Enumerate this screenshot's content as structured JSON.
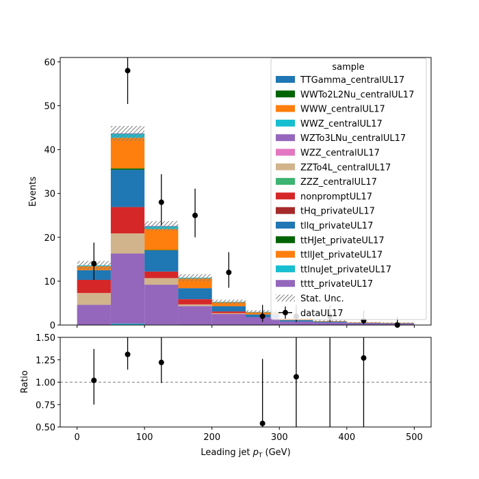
{
  "chart_data": {
    "type": "bar",
    "subtype": "stacked-histogram-with-ratio",
    "x_bin_edges": [
      0,
      50,
      100,
      150,
      200,
      250,
      300,
      350,
      400,
      450,
      500
    ],
    "xlabel_prefix": "Leading jet ",
    "xlabel_symbol": "p",
    "xlabel_subscript": "T",
    "xlabel_unit": " (GeV)",
    "xlim": [
      -25,
      525
    ],
    "xticks": [
      0,
      100,
      200,
      300,
      400,
      500
    ],
    "top": {
      "ylabel": "Events",
      "ylim": [
        0,
        61
      ],
      "yticks": [
        0,
        10,
        20,
        30,
        40,
        50,
        60
      ],
      "series": [
        {
          "name": "TTGamma_centralUL17",
          "color": "#1f77b4",
          "values": [
            0,
            0,
            0,
            0,
            0,
            0,
            0,
            0,
            0,
            0
          ]
        },
        {
          "name": "WWTo2L2Nu_centralUL17",
          "color": "#006400",
          "values": [
            0,
            0,
            0,
            0,
            0,
            0,
            0,
            0,
            0,
            0
          ]
        },
        {
          "name": "WWW_centralUL17",
          "color": "#ff7f0e",
          "values": [
            0,
            0,
            0,
            0,
            0,
            0,
            0,
            0,
            0,
            0
          ]
        },
        {
          "name": "WWZ_centralUL17",
          "color": "#17becf",
          "values": [
            0,
            0.3,
            0.1,
            0,
            0,
            0,
            0,
            0,
            0,
            0
          ]
        },
        {
          "name": "WZTo3LNu_centralUL17",
          "color": "#9467bd",
          "values": [
            4.6,
            16.0,
            9.1,
            4.3,
            2.5,
            1.8,
            0.8,
            0.6,
            0.4,
            0.3
          ]
        },
        {
          "name": "WZZ_centralUL17",
          "color": "#e377c2",
          "values": [
            0,
            0,
            0,
            0,
            0,
            0,
            0,
            0,
            0,
            0
          ]
        },
        {
          "name": "ZZTo4L_centralUL17",
          "color": "#d2b48c",
          "values": [
            2.7,
            4.6,
            1.5,
            0.4,
            0.2,
            0,
            0,
            0,
            0,
            0
          ]
        },
        {
          "name": "ZZZ_centralUL17",
          "color": "#3cb371",
          "values": [
            0,
            0,
            0,
            0,
            0,
            0,
            0,
            0,
            0,
            0
          ]
        },
        {
          "name": "nonpromptUL17",
          "color": "#d62728",
          "values": [
            3.0,
            6.0,
            1.5,
            1.2,
            0.4,
            0,
            0,
            0,
            0,
            0
          ]
        },
        {
          "name": "tHq_privateUL17",
          "color": "#a52a2a",
          "values": [
            0,
            0,
            0,
            0,
            0,
            0,
            0,
            0,
            0,
            0
          ]
        },
        {
          "name": "tllq_privateUL17",
          "color": "#1f77b4",
          "values": [
            2.2,
            8.5,
            4.8,
            2.5,
            1.2,
            0.6,
            0.3,
            0.2,
            0.1,
            0.1
          ]
        },
        {
          "name": "ttHJet_privateUL17",
          "color": "#006400",
          "values": [
            0,
            0.3,
            0.1,
            0,
            0,
            0,
            0,
            0,
            0,
            0
          ]
        },
        {
          "name": "ttllJet_privateUL17",
          "color": "#ff7f0e",
          "values": [
            0.9,
            7.0,
            4.8,
            2.2,
            0.9,
            0.5,
            0.3,
            0.1,
            0.1,
            0.1
          ]
        },
        {
          "name": "ttlnuJet_privateUL17",
          "color": "#17becf",
          "values": [
            0.2,
            0.9,
            0.6,
            0.2,
            0.1,
            0.1,
            0,
            0,
            0,
            0
          ]
        },
        {
          "name": "tttt_privateUL17",
          "color": "#9467bd",
          "values": [
            0,
            0.1,
            0.1,
            0,
            0,
            0,
            0,
            0,
            0,
            0
          ]
        }
      ],
      "stat_unc_label": "Stat. Unc.",
      "stat_unc": [
        1.0,
        1.7,
        1.1,
        0.8,
        0.5,
        0.4,
        0.2,
        0.2,
        0.1,
        0.1
      ],
      "data": {
        "name": "dataUL17",
        "values": [
          14,
          58,
          28,
          25,
          12,
          2,
          2,
          2,
          1,
          0
        ],
        "err_low": [
          3.7,
          7.6,
          5.3,
          5.0,
          3.5,
          1.3,
          1.3,
          1.3,
          0.8,
          0
        ],
        "err_high": [
          4.8,
          8.7,
          6.4,
          6.1,
          4.6,
          2.6,
          2.6,
          2.6,
          2.3,
          1.8
        ]
      },
      "legend_title": "sample",
      "legend_placement": "top-right"
    },
    "ratio": {
      "ylabel": "Ratio",
      "ylim": [
        0.5,
        1.5
      ],
      "yticks": [
        0.5,
        0.75,
        1.0,
        1.25,
        1.5
      ],
      "ytick_labels": [
        "0.50",
        "0.75",
        "1.00",
        "1.25",
        "1.50"
      ],
      "reference_line": 1.0,
      "x": [
        25,
        75,
        125,
        275,
        325,
        375,
        425
      ],
      "values": [
        1.02,
        1.31,
        1.22,
        0.54,
        1.06,
        null,
        1.27
      ],
      "err_low": [
        0.27,
        0.17,
        0.23,
        0.54,
        1.06,
        1.2,
        1.27
      ],
      "err_high": [
        0.35,
        0.2,
        0.28,
        0.72,
        1.3,
        1.5,
        1.6
      ]
    }
  }
}
